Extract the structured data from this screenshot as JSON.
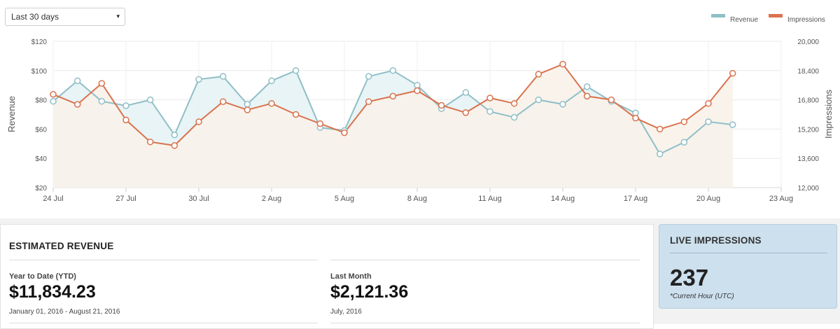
{
  "range_select": {
    "value": "Last 30 days",
    "caret": "▾"
  },
  "legend": {
    "revenue": "Revenue",
    "impressions": "Impressions"
  },
  "colors": {
    "revenue": "#8fbfc7",
    "impressions": "#d9734e",
    "revenue_fill": "#e4f2f4",
    "impressions_fill": "#f8f2ea"
  },
  "chart_data": {
    "type": "line",
    "xlabel": "",
    "ylabel": "Revenue",
    "y2label": "Impressions",
    "x_ticks": [
      "24 Jul",
      "27 Jul",
      "30 Jul",
      "2 Aug",
      "5 Aug",
      "8 Aug",
      "11 Aug",
      "14 Aug",
      "17 Aug",
      "20 Aug",
      "23 Aug"
    ],
    "y_ticks": [
      "$20",
      "$40",
      "$60",
      "$80",
      "$100",
      "$120"
    ],
    "y2_ticks": [
      "12,000",
      "13,600",
      "15,200",
      "16,800",
      "18,400",
      "20,000"
    ],
    "ylim": [
      20,
      120
    ],
    "y2lim": [
      12000,
      20000
    ],
    "dates": [
      "24 Jul",
      "25 Jul",
      "26 Jul",
      "27 Jul",
      "28 Jul",
      "29 Jul",
      "30 Jul",
      "31 Jul",
      "1 Aug",
      "2 Aug",
      "3 Aug",
      "4 Aug",
      "5 Aug",
      "6 Aug",
      "7 Aug",
      "8 Aug",
      "9 Aug",
      "10 Aug",
      "11 Aug",
      "12 Aug",
      "13 Aug",
      "14 Aug",
      "15 Aug",
      "16 Aug",
      "17 Aug",
      "18 Aug",
      "19 Aug",
      "20 Aug",
      "21 Aug"
    ],
    "series": [
      {
        "name": "Revenue",
        "axis": "left",
        "values": [
          79,
          93,
          79,
          76,
          80,
          56,
          94,
          96,
          77,
          93,
          100,
          61,
          59,
          96,
          100,
          90,
          74,
          85,
          72,
          68,
          80,
          77,
          89,
          79,
          71,
          43,
          51,
          65,
          63
        ]
      },
      {
        "name": "Impressions",
        "axis": "right",
        "values": [
          17100,
          16550,
          17700,
          15700,
          14500,
          14300,
          15600,
          16700,
          16250,
          16600,
          16000,
          15500,
          15000,
          16700,
          17000,
          17300,
          16500,
          16100,
          16900,
          16600,
          18200,
          18750,
          17000,
          16800,
          15800,
          15200,
          15600,
          16600,
          18250
        ]
      }
    ],
    "legend_position": "top-right",
    "grid": true
  },
  "revenue_card": {
    "title": "ESTIMATED REVENUE",
    "ytd_label": "Year to Date (YTD)",
    "ytd_value": "$11,834.23",
    "ytd_range": "January 01, 2016 - August 21, 2016",
    "last_month_label": "Last Month",
    "last_month_value": "$2,121.36",
    "last_month_range": "July, 2016"
  },
  "live_card": {
    "title": "LIVE IMPRESSIONS",
    "value": "237",
    "note": "*Current Hour (UTC)"
  }
}
